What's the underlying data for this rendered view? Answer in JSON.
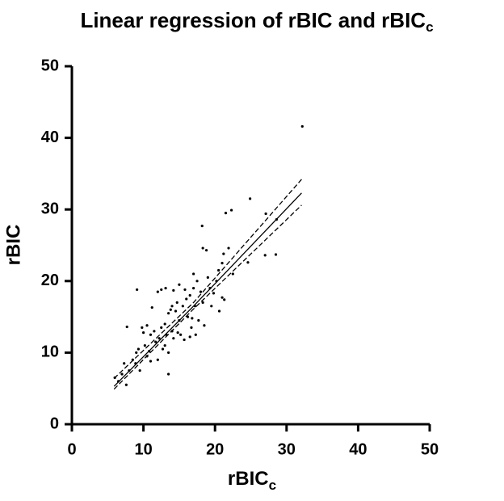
{
  "chart_data": {
    "type": "scatter",
    "title": {
      "text": "Linear regression of rBIC and rBIC",
      "subscript": "c"
    },
    "x_label": {
      "text": "rBIC",
      "subscript": "c"
    },
    "y_label": "rBIC",
    "xlim": [
      0,
      50
    ],
    "ylim": [
      0,
      50
    ],
    "xticks": [
      0,
      10,
      20,
      30,
      40,
      50
    ],
    "yticks": [
      0,
      10,
      20,
      30,
      40,
      50
    ],
    "color": "#000000",
    "x": [
      32.2,
      24.9,
      22.3,
      21.5,
      27.1,
      28.6,
      18.2,
      27.0,
      28.5,
      18.3,
      18.8,
      24.6,
      21.9,
      21.2,
      22.5,
      21.0,
      21.3,
      20.6,
      9.1,
      12.5,
      13.1,
      14.2,
      13.5,
      7.6,
      7.7,
      8.9,
      9.5,
      6.0,
      6.5,
      7.0,
      7.3,
      8.0,
      8.5,
      9.0,
      9.3,
      9.8,
      10.0,
      10.2,
      10.5,
      10.8,
      11.0,
      11.2,
      11.5,
      11.7,
      12.0,
      12.2,
      12.5,
      12.7,
      13.0,
      13.2,
      13.5,
      13.8,
      14.0,
      14.2,
      14.5,
      14.7,
      15.0,
      15.2,
      15.5,
      15.7,
      16.0,
      16.2,
      16.5,
      16.7,
      17.0,
      17.2,
      17.5,
      17.7,
      18.0,
      18.3,
      18.5,
      19.0,
      19.3,
      19.8,
      20.2,
      21.0,
      17.0,
      16.5,
      15.0,
      14.0,
      12.0,
      11.0,
      10.5,
      13.5,
      16.8,
      17.3,
      19.5,
      20.5,
      15.8,
      14.8,
      13.0
    ],
    "values": [
      41.6,
      31.5,
      29.9,
      29.5,
      29.4,
      28.6,
      27.7,
      23.6,
      23.7,
      24.6,
      24.3,
      22.6,
      24.6,
      23.8,
      21.0,
      17.7,
      17.4,
      15.8,
      18.8,
      18.8,
      19.0,
      18.7,
      7.0,
      5.5,
      13.6,
      8.5,
      7.5,
      6.5,
      6.0,
      7.0,
      8.5,
      7.5,
      9.0,
      10.0,
      10.5,
      13.5,
      12.8,
      11.0,
      9.5,
      10.2,
      12.5,
      16.3,
      13.0,
      11.5,
      9.0,
      12.0,
      13.5,
      10.5,
      14.0,
      12.5,
      15.5,
      16.0,
      13.0,
      12.0,
      15.8,
      17.0,
      14.5,
      12.5,
      16.5,
      11.8,
      17.5,
      15.0,
      18.0,
      13.5,
      19.0,
      16.5,
      20.0,
      14.5,
      18.5,
      17.0,
      13.8,
      20.5,
      19.0,
      18.3,
      20.0,
      22.5,
      21.0,
      12.2,
      19.5,
      16.5,
      18.5,
      8.8,
      13.8,
      10.0,
      14.8,
      12.5,
      16.5,
      21.5,
      18.8,
      12.8,
      11.0
    ],
    "fit": {
      "x": [
        5.9,
        17,
        32.1
      ],
      "y": [
        5.3,
        16.5,
        32.3
      ],
      "upper": [
        6.4,
        17.0,
        34.2
      ],
      "lower": [
        4.9,
        16.1,
        30.6
      ]
    }
  }
}
